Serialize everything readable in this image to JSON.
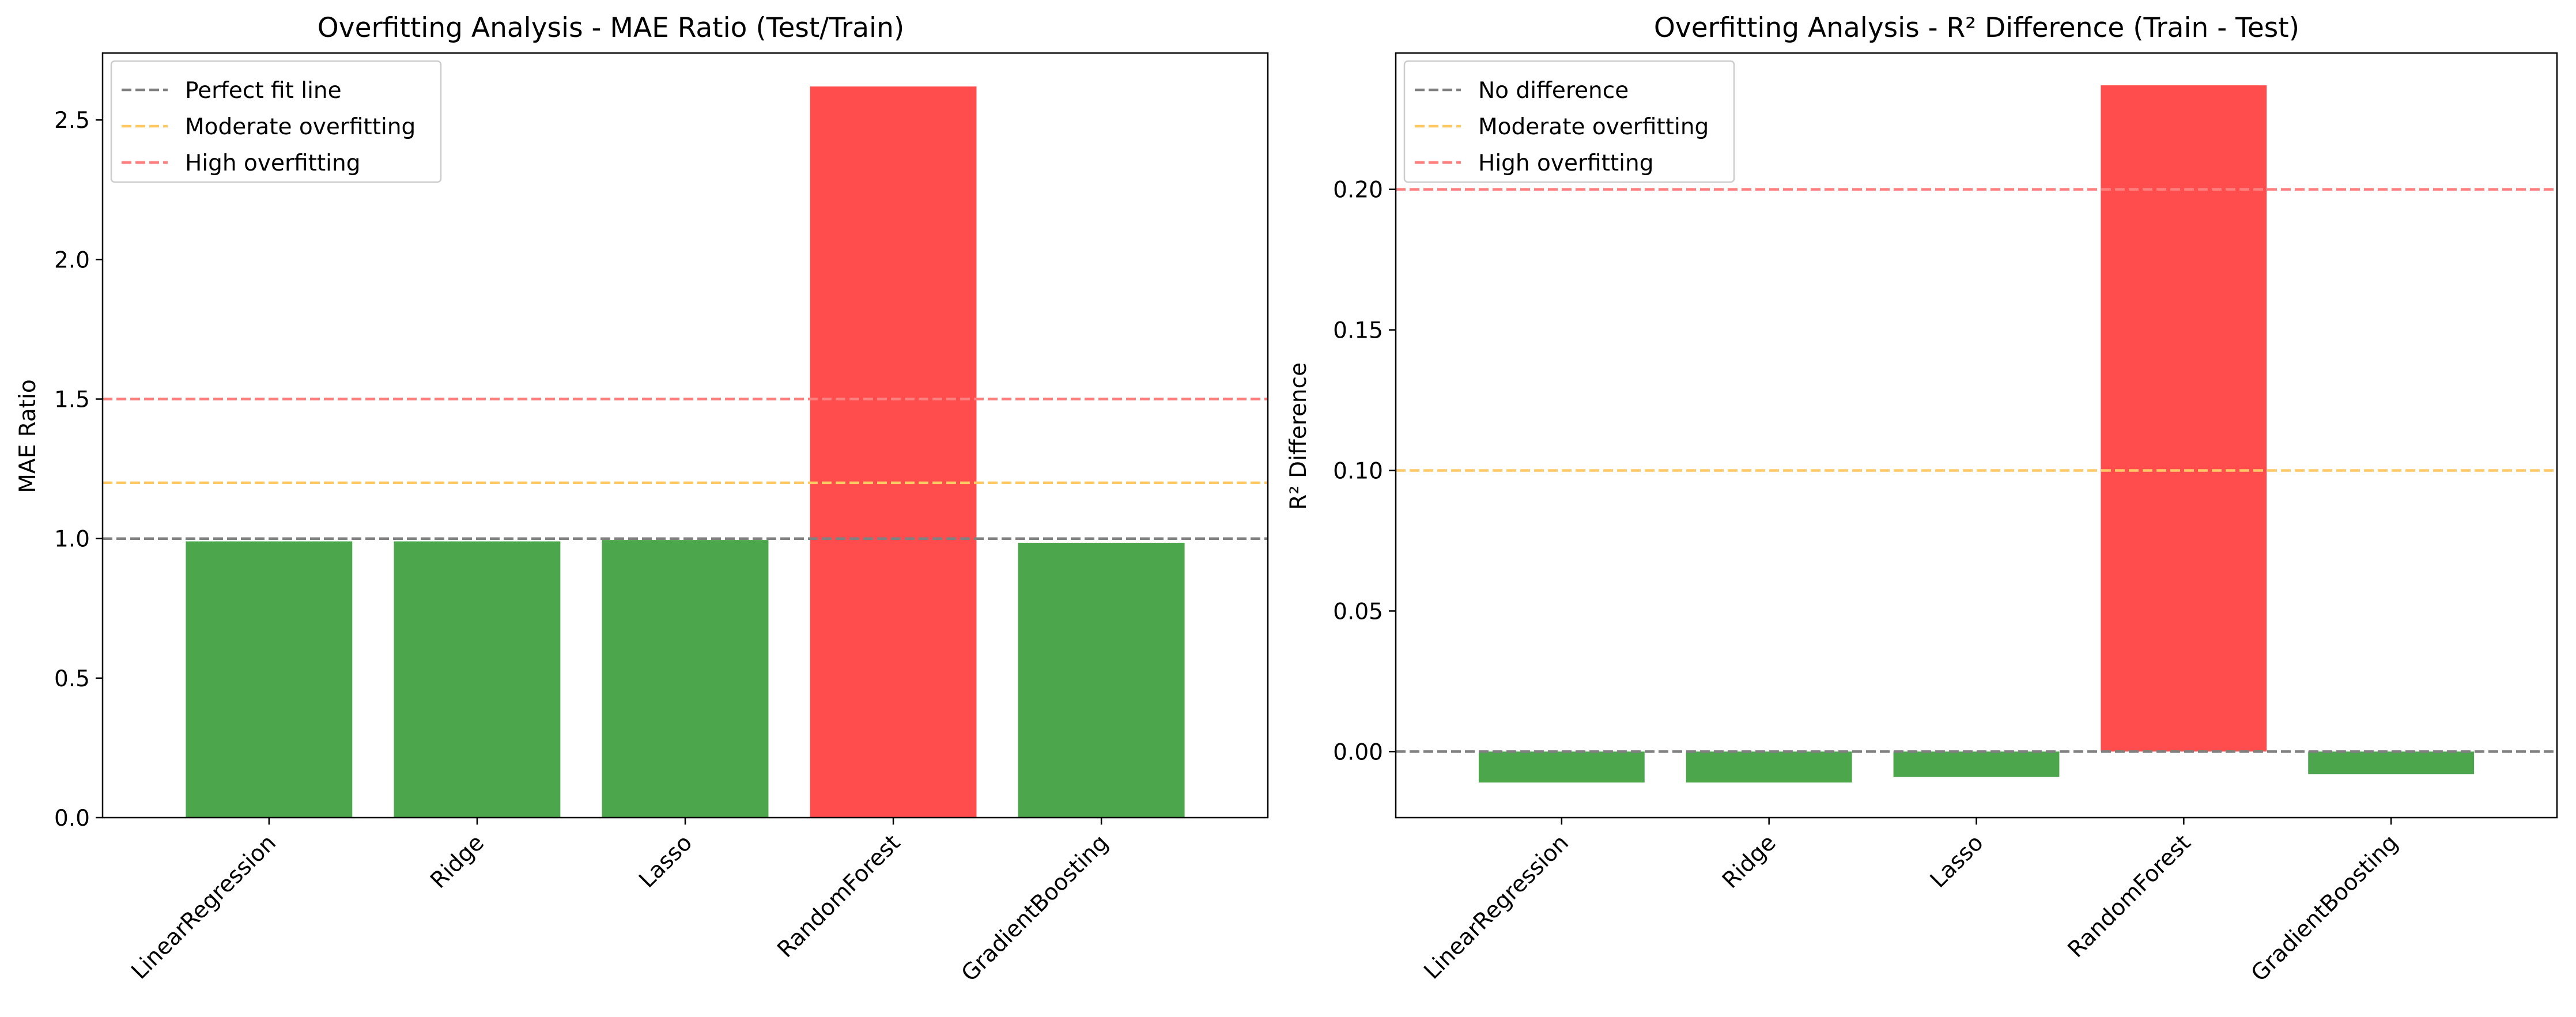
{
  "chart_data": [
    {
      "type": "bar",
      "title": "Overfitting Analysis - MAE Ratio (Test/Train)",
      "xlabel": "",
      "ylabel": "MAE Ratio",
      "categories": [
        "LinearRegression",
        "Ridge",
        "Lasso",
        "RandomForest",
        "GradientBoosting"
      ],
      "values": [
        0.99,
        0.99,
        0.995,
        2.62,
        0.985
      ],
      "bar_colors": [
        "#4ca64c",
        "#4ca64c",
        "#4ca64c",
        "#ff4c4c",
        "#4ca64c"
      ],
      "ylim": [
        0,
        2.74
      ],
      "yticks": [
        {
          "value": 0.0,
          "label": "0.0"
        },
        {
          "value": 0.5,
          "label": "0.5"
        },
        {
          "value": 1.0,
          "label": "1.0"
        },
        {
          "value": 1.5,
          "label": "1.5"
        },
        {
          "value": 2.0,
          "label": "2.0"
        },
        {
          "value": 2.5,
          "label": "2.5"
        }
      ],
      "reference_lines": [
        {
          "name": "Perfect fit line",
          "y": 1.0,
          "color": "#808080"
        },
        {
          "name": "Moderate overfitting",
          "y": 1.2,
          "color": "#ffc966"
        },
        {
          "name": "High overfitting",
          "y": 1.5,
          "color": "#ff7f7f"
        }
      ],
      "legend": "top-left",
      "grid": false
    },
    {
      "type": "bar",
      "title": "Overfitting Analysis - R² Difference (Train - Test)",
      "xlabel": "",
      "ylabel": "R² Difference",
      "categories": [
        "LinearRegression",
        "Ridge",
        "Lasso",
        "RandomForest",
        "GradientBoosting"
      ],
      "values": [
        -0.011,
        -0.011,
        -0.009,
        0.237,
        -0.008
      ],
      "bar_colors": [
        "#4ca64c",
        "#4ca64c",
        "#4ca64c",
        "#ff4c4c",
        "#4ca64c"
      ],
      "ylim": [
        -0.0235,
        0.2485
      ],
      "yticks": [
        {
          "value": 0.0,
          "label": "0.00"
        },
        {
          "value": 0.05,
          "label": "0.05"
        },
        {
          "value": 0.1,
          "label": "0.10"
        },
        {
          "value": 0.15,
          "label": "0.15"
        },
        {
          "value": 0.2,
          "label": "0.20"
        }
      ],
      "reference_lines": [
        {
          "name": "No difference",
          "y": 0.0,
          "color": "#808080"
        },
        {
          "name": "Moderate overfitting",
          "y": 0.1,
          "color": "#ffc966"
        },
        {
          "name": "High overfitting",
          "y": 0.2,
          "color": "#ff7f7f"
        }
      ],
      "legend": "top-left",
      "grid": false
    }
  ]
}
